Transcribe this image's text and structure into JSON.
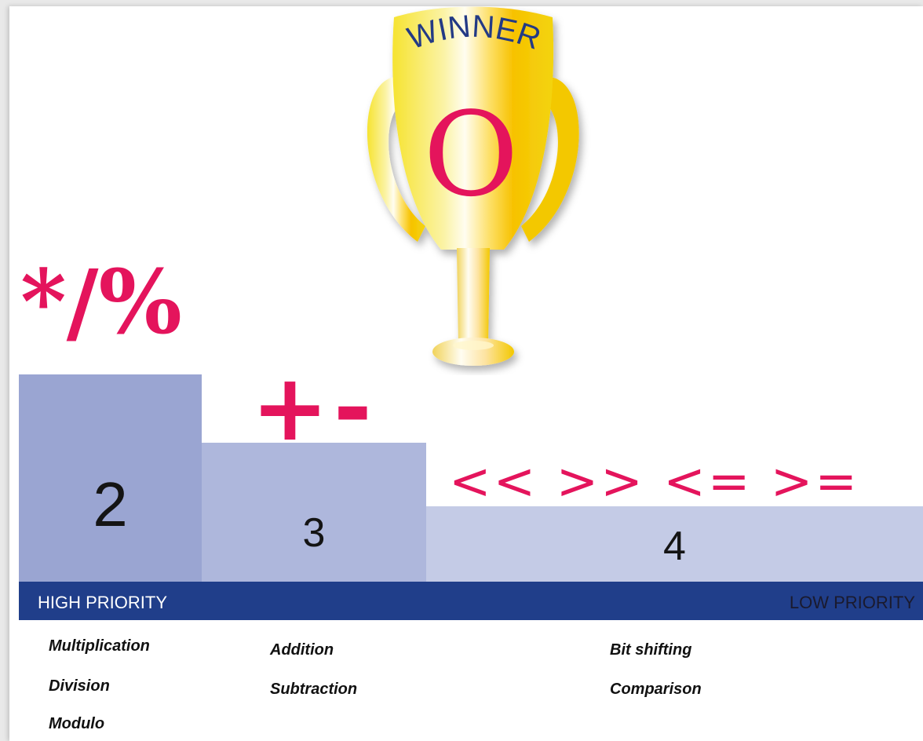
{
  "trophy": {
    "banner": "WINNER",
    "symbol": "O"
  },
  "operators": {
    "multiplicative": "*/%",
    "additive": "+-",
    "shift_compare": "<< >> <= >="
  },
  "podium": {
    "levels": [
      "2",
      "3",
      "4"
    ]
  },
  "priority_bar": {
    "high": "HIGH PRIORITY",
    "low": "LOW PRIORITY"
  },
  "descriptions": {
    "level2": [
      "Multiplication",
      "Division",
      "Modulo"
    ],
    "level3": [
      "Addition",
      "Subtraction"
    ],
    "level4": [
      "Bit shifting",
      "Comparison"
    ]
  },
  "colors": {
    "accent": "#e4145c",
    "bar": "#203e8a",
    "block2": "#9aa5d2",
    "block3": "#aeb7dc",
    "block4": "#c4cbe6",
    "gold": "#f3c400"
  }
}
